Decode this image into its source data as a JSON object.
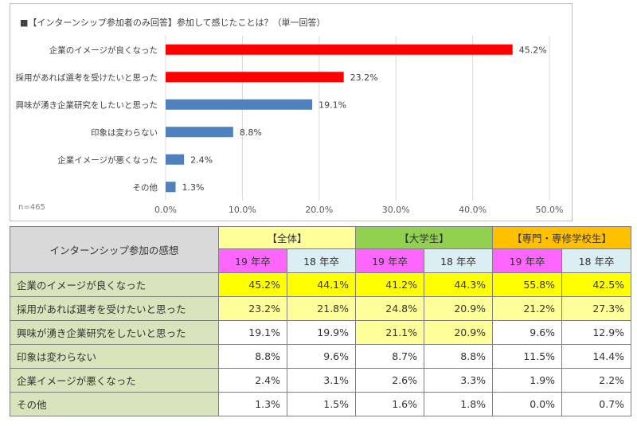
{
  "chart_data": {
    "type": "bar",
    "orientation": "horizontal",
    "title": "■【インターンシップ参加者のみ回答】参加して感じたことは？（単一回答）",
    "note": "n=465",
    "categories": [
      "企業のイメージが良くなった",
      "採用があれば選考を受けたいと思った",
      "興味が湧き企業研究をしたいと思った",
      "印象は変わらない",
      "企業イメージが悪くなった",
      "その他"
    ],
    "values": [
      45.2,
      23.2,
      19.1,
      8.8,
      2.4,
      1.3
    ],
    "value_labels": [
      "45.2%",
      "23.2%",
      "19.1%",
      "8.8%",
      "2.4%",
      "1.3%"
    ],
    "bar_colors": [
      "#ff0000",
      "#ff0000",
      "#4f81bd",
      "#4f81bd",
      "#4f81bd",
      "#4f81bd"
    ],
    "xlim": [
      0,
      50
    ],
    "xticks": [
      0,
      10,
      20,
      30,
      40,
      50
    ],
    "xtick_labels": [
      "0.0%",
      "10.0%",
      "20.0%",
      "30.0%",
      "40.0%",
      "50.0%"
    ],
    "grid": true
  },
  "table": {
    "corner_label": "インターンシップ参加の感想",
    "groups": [
      "【全体】",
      "【大学生】",
      "【専門・専修学校生】"
    ],
    "years": [
      "19 年卒",
      "18 年卒",
      "19 年卒",
      "18 年卒",
      "19 年卒",
      "18 年卒"
    ],
    "rows": [
      {
        "label": "企業のイメージが良くなった",
        "values": [
          "45.2%",
          "44.1%",
          "41.2%",
          "44.3%",
          "55.8%",
          "42.5%"
        ]
      },
      {
        "label": "採用があれば選考を受けたいと思った",
        "values": [
          "23.2%",
          "21.8%",
          "24.8%",
          "20.9%",
          "21.2%",
          "27.3%"
        ]
      },
      {
        "label": "興味が湧き企業研究をしたいと思った",
        "values": [
          "19.1%",
          "19.9%",
          "21.1%",
          "20.9%",
          "9.6%",
          "12.9%"
        ]
      },
      {
        "label": "印象は変わらない",
        "values": [
          "8.8%",
          "9.6%",
          "8.7%",
          "8.8%",
          "11.5%",
          "14.4%"
        ]
      },
      {
        "label": "企業イメージが悪くなった",
        "values": [
          "2.4%",
          "3.1%",
          "2.6%",
          "3.3%",
          "1.9%",
          "2.2%"
        ]
      },
      {
        "label": "その他",
        "values": [
          "1.3%",
          "1.5%",
          "1.6%",
          "1.8%",
          "0.0%",
          "0.7%"
        ]
      }
    ],
    "colors": {
      "corner": "#d9d9d9",
      "row_label": "#d8e4bc",
      "group_all": "#ffff99",
      "group_university": "#92d050",
      "group_vocational": "#ffc000",
      "year_19": "#ff66ff",
      "year_18": "#daeef3",
      "highlight": "#ffff00",
      "light_highlight": "#ffff99"
    }
  }
}
